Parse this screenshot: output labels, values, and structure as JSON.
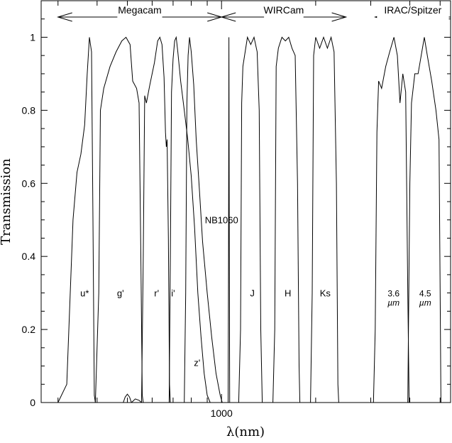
{
  "chart_data": {
    "type": "line",
    "xlabel": "λ(nm)",
    "ylabel": "Transmission",
    "x_scale": "log",
    "xlim": [
      265,
      5400
    ],
    "ylim": [
      0,
      1.1
    ],
    "x_ticks": [
      {
        "value": 1000,
        "label": "1000"
      }
    ],
    "y_ticks": [
      {
        "value": 0,
        "label": "0"
      },
      {
        "value": 0.2,
        "label": "0.2"
      },
      {
        "value": 0.4,
        "label": "0.4"
      },
      {
        "value": 0.6,
        "label": "0.6"
      },
      {
        "value": 0.8,
        "label": "0.8"
      },
      {
        "value": 1,
        "label": "1"
      }
    ],
    "instrument_ranges": [
      {
        "label": "Megacam",
        "x_start": 300,
        "x_end": 1000
      },
      {
        "label": "WIRCam",
        "x_start": 1000,
        "x_end": 2500
      },
      {
        "label": "IRAC/Spitzer",
        "x_start": 3100,
        "x_end": 5400
      }
    ],
    "series": [
      {
        "name": "u*",
        "label_x": 365,
        "label_y": 0.3,
        "points": [
          [
            300,
            0
          ],
          [
            320,
            0.05
          ],
          [
            335,
            0.5
          ],
          [
            345,
            0.63
          ],
          [
            355,
            0.68
          ],
          [
            365,
            0.76
          ],
          [
            372,
            0.9
          ],
          [
            378,
            1.0
          ],
          [
            384,
            0.96
          ],
          [
            388,
            0.5
          ],
          [
            392,
            0.02
          ],
          [
            395,
            0
          ]
        ]
      },
      {
        "name": "g'",
        "label_x": 475,
        "label_y": 0.3,
        "points": [
          [
            395,
            0
          ],
          [
            405,
            0.3
          ],
          [
            410,
            0.8
          ],
          [
            420,
            0.86
          ],
          [
            440,
            0.92
          ],
          [
            460,
            0.96
          ],
          [
            480,
            0.99
          ],
          [
            495,
            1.0
          ],
          [
            510,
            0.98
          ],
          [
            520,
            0.88
          ],
          [
            535,
            0.86
          ],
          [
            545,
            0.82
          ],
          [
            552,
            0.4
          ],
          [
            558,
            0.02
          ],
          [
            562,
            0
          ]
        ]
      },
      {
        "name": "r'",
        "label_x": 620,
        "label_y": 0.3,
        "points": [
          [
            555,
            0
          ],
          [
            562,
            0.4
          ],
          [
            568,
            0.84
          ],
          [
            575,
            0.82
          ],
          [
            590,
            0.87
          ],
          [
            610,
            0.93
          ],
          [
            625,
            0.99
          ],
          [
            635,
            1.0
          ],
          [
            645,
            0.98
          ],
          [
            655,
            0.89
          ],
          [
            662,
            0.74
          ],
          [
            666,
            0.7
          ],
          [
            670,
            0.72
          ],
          [
            676,
            0.45
          ],
          [
            682,
            0.05
          ],
          [
            686,
            0
          ]
        ]
      },
      {
        "name": "i'",
        "label_x": 700,
        "label_y": 0.3,
        "points": [
          [
            680,
            0
          ],
          [
            686,
            0.4
          ],
          [
            692,
            0.85
          ],
          [
            700,
            0.94
          ],
          [
            708,
            0.99
          ],
          [
            716,
            1.0
          ],
          [
            725,
            0.96
          ],
          [
            740,
            0.88
          ],
          [
            760,
            0.8
          ],
          [
            780,
            0.72
          ],
          [
            800,
            0.62
          ],
          [
            820,
            0.48
          ],
          [
            840,
            0.3
          ],
          [
            860,
            0.18
          ],
          [
            880,
            0.08
          ],
          [
            900,
            0.02
          ],
          [
            920,
            0
          ]
        ]
      },
      {
        "name": "z'",
        "label_x": 835,
        "label_y": 0.11,
        "points": [
          [
            760,
            0
          ],
          [
            768,
            0.3
          ],
          [
            775,
            0.82
          ],
          [
            782,
            0.95
          ],
          [
            790,
            1.0
          ],
          [
            800,
            0.96
          ],
          [
            815,
            0.87
          ],
          [
            830,
            0.72
          ],
          [
            850,
            0.58
          ],
          [
            870,
            0.44
          ],
          [
            900,
            0.3
          ],
          [
            930,
            0.18
          ],
          [
            960,
            0.08
          ],
          [
            990,
            0.02
          ],
          [
            1005,
            0
          ]
        ]
      },
      {
        "name": "NB1060",
        "label_x": 1000,
        "label_y": 0.5,
        "points": [
          [
            1050,
            0
          ],
          [
            1053,
            0.4
          ],
          [
            1056,
            1.0
          ],
          [
            1059,
            0.4
          ],
          [
            1062,
            0
          ]
        ]
      },
      {
        "name": "J",
        "label_x": 1255,
        "label_y": 0.3,
        "points": [
          [
            1135,
            0
          ],
          [
            1150,
            0.2
          ],
          [
            1160,
            0.82
          ],
          [
            1170,
            0.92
          ],
          [
            1190,
            0.96
          ],
          [
            1210,
            1.0
          ],
          [
            1240,
            0.98
          ],
          [
            1270,
            1.0
          ],
          [
            1300,
            0.96
          ],
          [
            1320,
            0.8
          ],
          [
            1335,
            0.2
          ],
          [
            1350,
            0
          ]
        ]
      },
      {
        "name": "H",
        "label_x": 1630,
        "label_y": 0.3,
        "points": [
          [
            1460,
            0
          ],
          [
            1480,
            0.2
          ],
          [
            1495,
            0.92
          ],
          [
            1520,
            0.97
          ],
          [
            1560,
            1.0
          ],
          [
            1600,
            0.99
          ],
          [
            1640,
            1.0
          ],
          [
            1680,
            0.97
          ],
          [
            1720,
            0.95
          ],
          [
            1750,
            0.6
          ],
          [
            1770,
            0.1
          ],
          [
            1780,
            0
          ]
        ]
      },
      {
        "name": "Ks",
        "label_x": 2145,
        "label_y": 0.3,
        "points": [
          [
            1925,
            0
          ],
          [
            1950,
            0.3
          ],
          [
            1970,
            0.95
          ],
          [
            2000,
            1.0
          ],
          [
            2060,
            0.97
          ],
          [
            2120,
            1.0
          ],
          [
            2180,
            0.97
          ],
          [
            2240,
            1.0
          ],
          [
            2290,
            0.96
          ],
          [
            2330,
            0.6
          ],
          [
            2355,
            0.05
          ],
          [
            2370,
            0
          ]
        ]
      },
      {
        "name": "3.6 µm",
        "label_x": 3550,
        "label_y": 0.3,
        "points": [
          [
            3060,
            0
          ],
          [
            3100,
            0.2
          ],
          [
            3140,
            0.74
          ],
          [
            3180,
            0.88
          ],
          [
            3250,
            0.86
          ],
          [
            3350,
            0.92
          ],
          [
            3450,
            0.96
          ],
          [
            3560,
            1.0
          ],
          [
            3650,
            0.95
          ],
          [
            3720,
            0.82
          ],
          [
            3800,
            0.9
          ],
          [
            3880,
            0.85
          ],
          [
            3940,
            0.3
          ],
          [
            3980,
            0
          ]
        ]
      },
      {
        "name": "4.5 µm",
        "label_x": 4480,
        "label_y": 0.3,
        "points": [
          [
            3940,
            0
          ],
          [
            3980,
            0.4
          ],
          [
            4000,
            0.6
          ],
          [
            4050,
            0.82
          ],
          [
            4150,
            0.9
          ],
          [
            4250,
            0.9
          ],
          [
            4350,
            0.95
          ],
          [
            4450,
            1.0
          ],
          [
            4550,
            0.95
          ],
          [
            4700,
            0.88
          ],
          [
            4850,
            0.8
          ],
          [
            4960,
            0.72
          ],
          [
            5000,
            0.3
          ],
          [
            5030,
            0
          ]
        ]
      }
    ],
    "minor_bumps": [
      {
        "points": [
          [
            485,
            0
          ],
          [
            492,
            0.015
          ],
          [
            500,
            0.023
          ],
          [
            508,
            0.015
          ],
          [
            515,
            0
          ]
        ]
      },
      {
        "points": [
          [
            515,
            0
          ],
          [
            530,
            0.01
          ],
          [
            545,
            0.006
          ],
          [
            555,
            0
          ]
        ]
      }
    ],
    "grid": false
  }
}
